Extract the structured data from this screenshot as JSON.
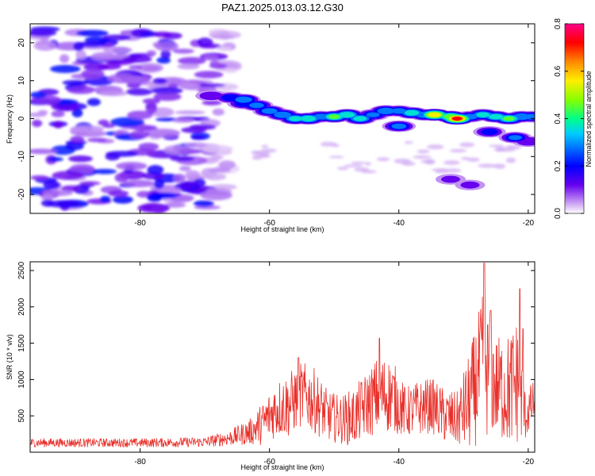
{
  "title": "PAZ1.2025.013.03.12.G30",
  "chart_data": [
    {
      "type": "heatmap",
      "xlabel": "Height of straight line (km)",
      "ylabel": "Frequency (Hz)",
      "xlim": [
        -97,
        -19
      ],
      "ylim": [
        -25,
        25
      ],
      "x_ticks": [
        -80,
        -60,
        -40,
        -20
      ],
      "y_ticks": [
        -20,
        -10,
        0,
        10,
        20
      ],
      "colorbar": {
        "label": "Normalized spectral amplitude",
        "range": [
          0,
          0.8
        ],
        "ticks": [
          "0.0",
          "0.2",
          "0.4",
          "0.6",
          "0.8"
        ],
        "palette": [
          "#ffffff",
          "#d9b8f5",
          "#6600ee",
          "#0000ff",
          "#00ccff",
          "#00ff88",
          "#88ff00",
          "#ffee00",
          "#ff8800",
          "#ff0000",
          "#ff0088"
        ]
      },
      "noise_region": {
        "x": [
          -96,
          -66
        ],
        "y": [
          -24,
          24
        ],
        "amplitude": [
          0.05,
          0.22
        ]
      },
      "ridge": [
        {
          "x": -69,
          "y": 6,
          "amp": 0.18
        },
        {
          "x": -66,
          "y": 5.5,
          "amp": 0.25
        },
        {
          "x": -64,
          "y": 5,
          "amp": 0.34
        },
        {
          "x": -62,
          "y": 3.5,
          "amp": 0.3
        },
        {
          "x": -60,
          "y": 2,
          "amp": 0.32
        },
        {
          "x": -58,
          "y": 1,
          "amp": 0.34
        },
        {
          "x": -56,
          "y": 0,
          "amp": 0.38
        },
        {
          "x": -54,
          "y": 0,
          "amp": 0.42
        },
        {
          "x": -52,
          "y": 0.5,
          "amp": 0.32
        },
        {
          "x": -50,
          "y": 0.5,
          "amp": 0.45
        },
        {
          "x": -48,
          "y": 1,
          "amp": 0.42
        },
        {
          "x": -46,
          "y": 0,
          "amp": 0.38
        },
        {
          "x": -44,
          "y": 1,
          "amp": 0.28
        },
        {
          "x": -42,
          "y": 2,
          "amp": 0.35
        },
        {
          "x": -40,
          "y": 2,
          "amp": 0.3
        },
        {
          "x": -38,
          "y": 1.5,
          "amp": 0.4
        },
        {
          "x": -36,
          "y": 1,
          "amp": 0.35
        },
        {
          "x": -34.5,
          "y": 1,
          "amp": 0.62
        },
        {
          "x": -32,
          "y": 0.5,
          "amp": 0.5
        },
        {
          "x": -31,
          "y": 0,
          "amp": 0.72
        },
        {
          "x": -29,
          "y": 0.5,
          "amp": 0.3
        },
        {
          "x": -27,
          "y": 1,
          "amp": 0.38
        },
        {
          "x": -25,
          "y": 0.5,
          "amp": 0.4
        },
        {
          "x": -23,
          "y": 0,
          "amp": 0.45
        },
        {
          "x": -21,
          "y": 0.5,
          "amp": 0.35
        },
        {
          "x": -19.5,
          "y": 0.5,
          "amp": 0.3
        }
      ],
      "secondary": [
        {
          "x": -40,
          "y": -2,
          "amp": 0.3
        },
        {
          "x": -26,
          "y": -3.5,
          "amp": 0.22
        },
        {
          "x": -22,
          "y": -5,
          "amp": 0.28
        },
        {
          "x": -20,
          "y": -6,
          "amp": 0.18
        },
        {
          "x": -64,
          "y": 4,
          "amp": 0.25
        },
        {
          "x": -32,
          "y": -16,
          "amp": 0.12
        },
        {
          "x": -29,
          "y": -17.5,
          "amp": 0.12
        }
      ]
    },
    {
      "type": "line",
      "xlabel": "Height of straight line (km)",
      "ylabel": "SNR (10 * v/v)",
      "xlim": [
        -97,
        -19
      ],
      "ylim": [
        0,
        2620
      ],
      "x_ticks": [
        -80,
        -60,
        -40,
        -20
      ],
      "y_ticks": [
        500,
        1000,
        1500,
        2000,
        2500
      ],
      "series": [
        {
          "color": "#e8302a",
          "envelope_x": [
            -97,
            -90,
            -80,
            -70,
            -66,
            -63,
            -61,
            -59,
            -57,
            -55,
            -53,
            -51,
            -49,
            -47,
            -45,
            -43,
            -41,
            -39,
            -37,
            -35,
            -33,
            -31,
            -29,
            -27,
            -25,
            -23,
            -21.5,
            -20.5,
            -19
          ],
          "envelope_mid": [
            130,
            130,
            130,
            140,
            200,
            280,
            400,
            600,
            650,
            800,
            700,
            500,
            450,
            480,
            650,
            800,
            780,
            550,
            600,
            650,
            500,
            450,
            700,
            1200,
            900,
            850,
            1000,
            500,
            700
          ],
          "envelope_amp": [
            60,
            60,
            60,
            70,
            110,
            180,
            300,
            400,
            450,
            450,
            450,
            350,
            330,
            400,
            450,
            550,
            500,
            350,
            380,
            380,
            380,
            380,
            700,
            1000,
            700,
            800,
            900,
            350,
            300
          ],
          "peaks": [
            {
              "x": -55.5,
              "y": 1300
            },
            {
              "x": -43,
              "y": 1570
            },
            {
              "x": -26.8,
              "y": 2600
            },
            {
              "x": -25.8,
              "y": 1950
            },
            {
              "x": -21.3,
              "y": 2250
            },
            {
              "x": -20.8,
              "y": 1700
            }
          ]
        }
      ]
    }
  ]
}
